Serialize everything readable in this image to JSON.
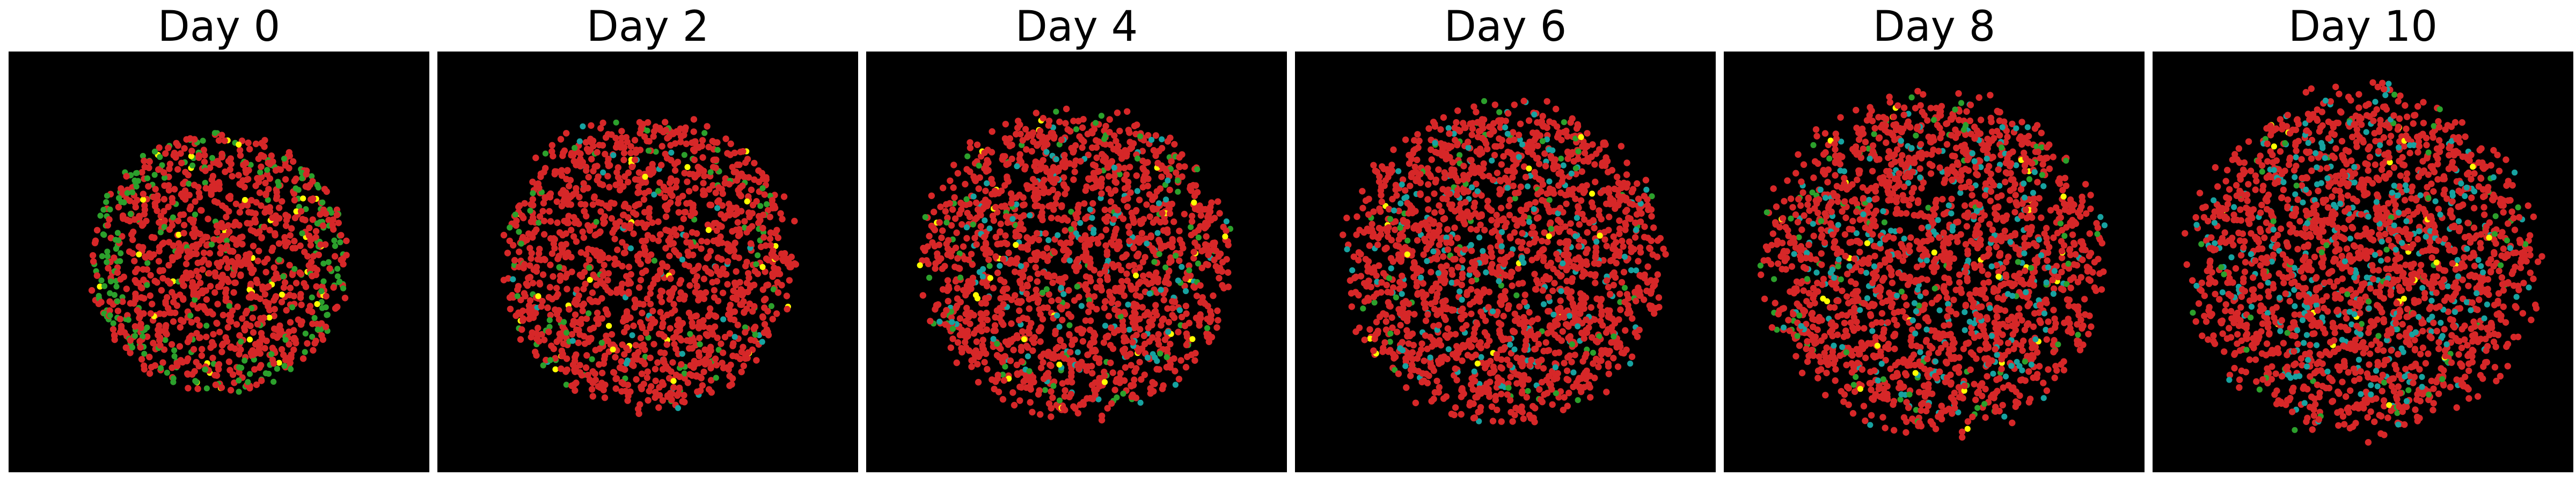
{
  "panels": [
    {
      "title": "Day 0"
    },
    {
      "title": "Day 2"
    },
    {
      "title": "Day 4"
    },
    {
      "title": "Day 6"
    },
    {
      "title": "Day 8"
    },
    {
      "title": "Day 10"
    }
  ],
  "colors": {
    "background": "#000000",
    "red": "#d62728",
    "green": "#2ca02c",
    "yellow": "#ffff00",
    "teal": "#17a2a0"
  }
}
